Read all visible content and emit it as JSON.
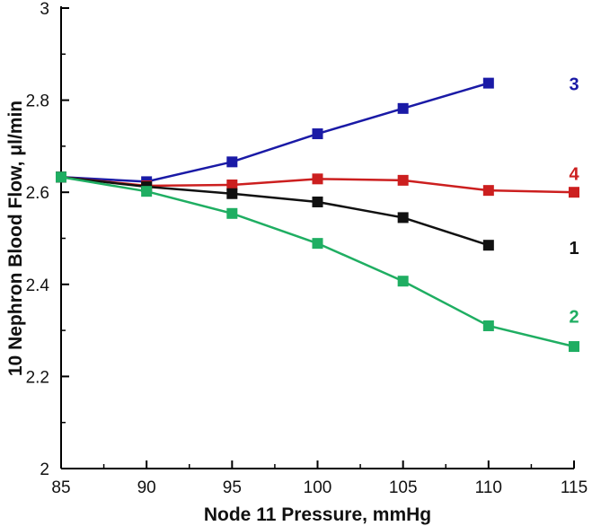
{
  "chart_data": {
    "type": "line",
    "xlabel": "Node 11 Pressure, mmHg",
    "ylabel": "10 Nephron Blood Flow, μl/min",
    "xlim": [
      85,
      115
    ],
    "ylim": [
      2,
      3
    ],
    "xticks": [
      "85",
      "90",
      "95",
      "100",
      "105",
      "110",
      "115"
    ],
    "yticks": [
      "2",
      "2.2",
      "2.4",
      "2.6",
      "2.8",
      "3"
    ],
    "series": [
      {
        "name": "3",
        "color": "#1a1aa6",
        "x": [
          85,
          90,
          95,
          100,
          105,
          110
        ],
        "values": [
          2.633,
          2.623,
          2.666,
          2.727,
          2.782,
          2.837
        ]
      },
      {
        "name": "4",
        "color": "#cc1f1f",
        "x": [
          85,
          90,
          95,
          100,
          105,
          110,
          115
        ],
        "values": [
          2.633,
          2.614,
          2.616,
          2.629,
          2.626,
          2.604,
          2.6
        ]
      },
      {
        "name": "1",
        "color": "#111111",
        "x": [
          85,
          90,
          95,
          100,
          105,
          110
        ],
        "values": [
          2.633,
          2.612,
          2.597,
          2.579,
          2.545,
          2.485
        ]
      },
      {
        "name": "2",
        "color": "#1fae62",
        "x": [
          85,
          90,
          95,
          100,
          105,
          110,
          115
        ],
        "values": [
          2.633,
          2.602,
          2.554,
          2.489,
          2.407,
          2.31,
          2.265
        ]
      }
    ]
  }
}
